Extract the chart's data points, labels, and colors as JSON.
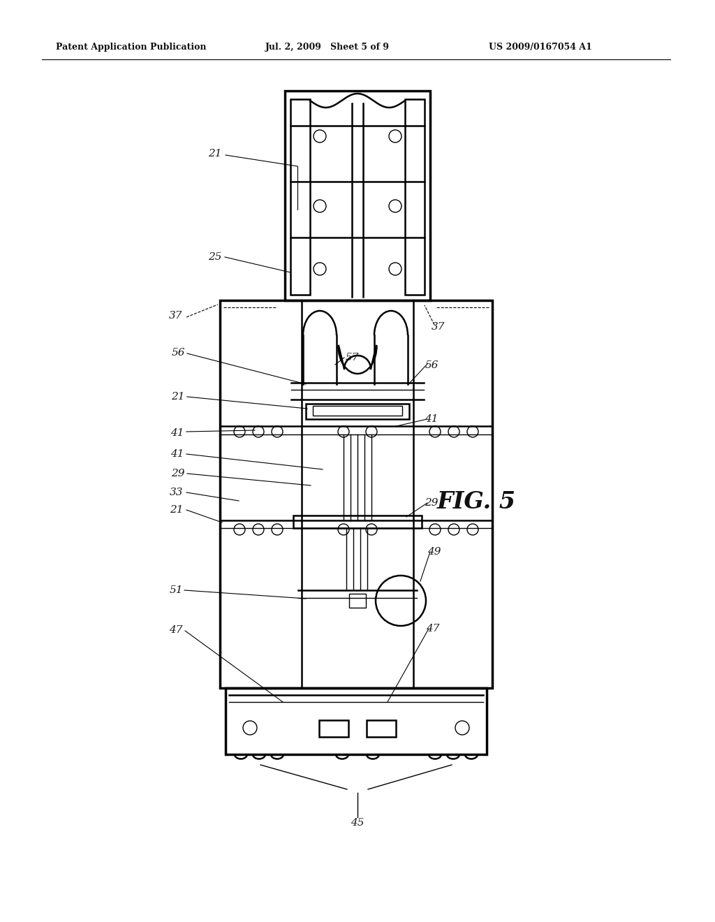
{
  "header_left": "Patent Application Publication",
  "header_mid": "Jul. 2, 2009   Sheet 5 of 9",
  "header_right": "US 2009/0167054 A1",
  "figure_label": "FIG. 5",
  "bg_color": "#ffffff",
  "line_color": "#000000",
  "label_color": "#1a1a1a"
}
